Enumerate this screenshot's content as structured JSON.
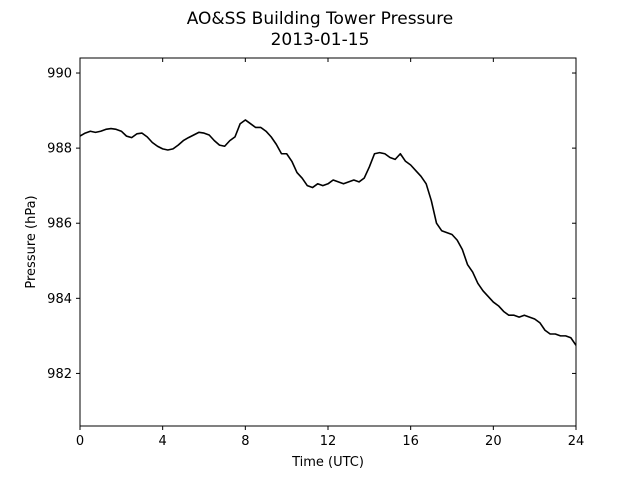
{
  "chart_data": {
    "type": "line",
    "title": "AO&SS Building Tower Pressure",
    "subtitle": "2013-01-15",
    "xlabel": "Time (UTC)",
    "ylabel": "Pressure (hPa)",
    "xlim": [
      0,
      24
    ],
    "ylim": [
      980.6,
      990.4
    ],
    "xticks": [
      0,
      4,
      8,
      12,
      16,
      20,
      24
    ],
    "yticks": [
      982,
      984,
      986,
      988,
      990
    ],
    "grid": false,
    "legend": "none",
    "line_color": "#000000",
    "series": [
      {
        "x": [
          0,
          0.25,
          0.5,
          0.75,
          1.0,
          1.25,
          1.5,
          1.75,
          2.0,
          2.25,
          2.5,
          2.75,
          3.0,
          3.25,
          3.5,
          3.75,
          4.0,
          4.25,
          4.5,
          4.75,
          5.0,
          5.25,
          5.5,
          5.75,
          6.0,
          6.25,
          6.5,
          6.75,
          7.0,
          7.25,
          7.5,
          7.75,
          8.0,
          8.25,
          8.5,
          8.75,
          9.0,
          9.25,
          9.5,
          9.75,
          10.0,
          10.25,
          10.5,
          10.75,
          11.0,
          11.25,
          11.5,
          11.75,
          12.0,
          12.25,
          12.5,
          12.75,
          13.0,
          13.25,
          13.5,
          13.75,
          14.0,
          14.25,
          14.5,
          14.75,
          15.0,
          15.25,
          15.5,
          15.75,
          16.0,
          16.25,
          16.5,
          16.75,
          17.0,
          17.25,
          17.5,
          17.75,
          18.0,
          18.25,
          18.5,
          18.75,
          19.0,
          19.25,
          19.5,
          19.75,
          20.0,
          20.25,
          20.5,
          20.75,
          21.0,
          21.25,
          21.5,
          21.75,
          22.0,
          22.25,
          22.5,
          22.75,
          23.0,
          23.25,
          23.5,
          23.75,
          24.0
        ],
        "values": [
          988.32,
          988.4,
          988.45,
          988.42,
          988.45,
          988.5,
          988.52,
          988.5,
          988.45,
          988.32,
          988.28,
          988.38,
          988.4,
          988.3,
          988.15,
          988.05,
          987.98,
          987.95,
          987.98,
          988.08,
          988.2,
          988.28,
          988.35,
          988.42,
          988.4,
          988.35,
          988.2,
          988.08,
          988.05,
          988.2,
          988.3,
          988.65,
          988.75,
          988.65,
          988.55,
          988.55,
          988.45,
          988.3,
          988.1,
          987.85,
          987.85,
          987.65,
          987.35,
          987.2,
          987.0,
          986.95,
          987.05,
          987.0,
          987.05,
          987.15,
          987.1,
          987.05,
          987.1,
          987.15,
          987.1,
          987.2,
          987.5,
          987.85,
          987.88,
          987.85,
          987.75,
          987.7,
          987.85,
          987.65,
          987.55,
          987.4,
          987.25,
          987.05,
          986.6,
          986.0,
          985.8,
          985.75,
          985.7,
          985.55,
          985.3,
          984.9,
          984.7,
          984.4,
          984.2,
          984.05,
          983.9,
          983.8,
          983.65,
          983.55,
          983.55,
          983.5,
          983.55,
          983.5,
          983.45,
          983.35,
          983.15,
          983.05,
          983.05,
          983.0,
          983.0,
          982.95,
          982.75
        ]
      }
    ]
  }
}
